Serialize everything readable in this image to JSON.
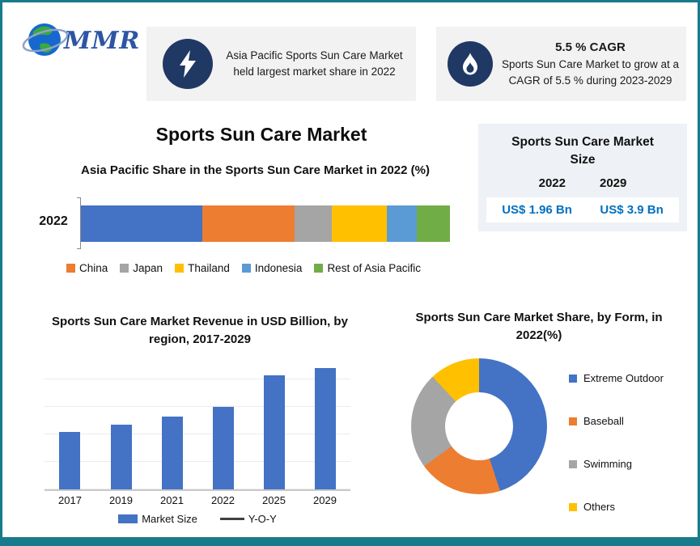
{
  "page": {
    "border_color": "#177b8b",
    "background": "#ffffff"
  },
  "logo": {
    "text": "MMR"
  },
  "highlight_cards": [
    {
      "icon": "lightning-bolt-icon",
      "text": "Asia Pacific Sports Sun Care Market held largest market share in 2022"
    },
    {
      "icon": "flame-icon",
      "title": "5.5 % CAGR",
      "text": "Sports Sun Care Market to grow at a CAGR of 5.5 % during 2023-2029"
    }
  ],
  "main_title": "Sports Sun Care Market",
  "market_size_panel": {
    "title": "Sports Sun Care Market Size",
    "columns": [
      {
        "year": "2022",
        "value": "US$ 1.96 Bn"
      },
      {
        "year": "2029",
        "value": "US$ 3.9 Bn"
      }
    ],
    "value_color": "#0070c0"
  },
  "chart_data": [
    {
      "type": "bar",
      "variant": "horizontal-stacked",
      "title": "Asia Pacific Share in the Sports Sun Care Market in 2022 (%)",
      "categories": [
        "2022"
      ],
      "series": [
        {
          "name": "",
          "value": 33,
          "color": "#4472c4"
        },
        {
          "name": "China",
          "value": 25,
          "color": "#ed7d31"
        },
        {
          "name": "Japan",
          "value": 10,
          "color": "#a5a5a5"
        },
        {
          "name": "Thailand",
          "value": 15,
          "color": "#ffc000"
        },
        {
          "name": "Indonesia",
          "value": 8,
          "color": "#5b9bd5"
        },
        {
          "name": "Rest of Asia Pacific",
          "value": 9,
          "color": "#70ad47"
        }
      ],
      "legend_position": "bottom",
      "value_note": "segment widths estimated in % of total bar; leading blue segment has no legend entry"
    },
    {
      "type": "bar",
      "title": "Sports Sun Care Market Revenue in USD Billion, by region, 2017-2029",
      "categories": [
        "2017",
        "2019",
        "2021",
        "2022",
        "2025",
        "2029"
      ],
      "values": [
        47,
        53,
        60,
        68,
        94,
        100
      ],
      "value_note": "relative bar heights in % of tallest bar (no y-axis labels shown)",
      "bar_color": "#4472c4",
      "grid": true,
      "legend": [
        {
          "label": "Market Size",
          "color": "#4472c4",
          "marker": "square"
        },
        {
          "label": "Y-O-Y",
          "color": "#404040",
          "marker": "line"
        }
      ],
      "legend_position": "bottom"
    },
    {
      "type": "pie",
      "variant": "donut",
      "title": "Sports Sun Care Market Share, by Form, in 2022(%)",
      "slices": [
        {
          "label": "Extreme Outdoor",
          "value": 45,
          "color": "#4472c4"
        },
        {
          "label": "Baseball",
          "value": 20,
          "color": "#ed7d31"
        },
        {
          "label": "Swimming",
          "value": 23,
          "color": "#a5a5a5"
        },
        {
          "label": "Others",
          "value": 12,
          "color": "#ffc000"
        }
      ],
      "legend_position": "right",
      "value_note": "slice sizes estimated from angles"
    }
  ]
}
